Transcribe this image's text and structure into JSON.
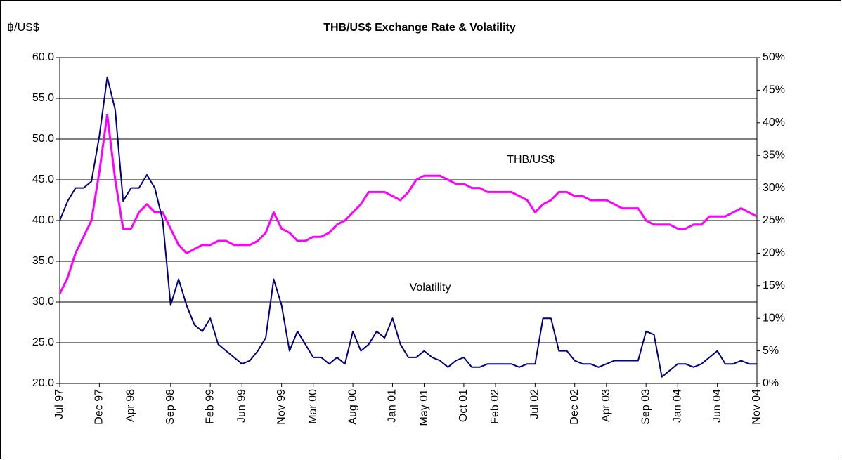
{
  "chart_data": {
    "type": "line",
    "title": "THB/US$ Exchange Rate & Volatility",
    "y_axis_label": "฿/US$",
    "annotations": [
      "THB/US$",
      "Volatility"
    ],
    "categories": [
      "Jul 97",
      null,
      null,
      null,
      null,
      "Dec 97",
      null,
      null,
      null,
      "Apr 98",
      null,
      null,
      null,
      null,
      "Sep 98",
      null,
      null,
      null,
      null,
      "Feb 99",
      null,
      null,
      null,
      "Jun 99",
      null,
      null,
      null,
      null,
      "Nov 99",
      null,
      null,
      null,
      "Mar 00",
      null,
      null,
      null,
      null,
      "Aug 00",
      null,
      null,
      null,
      null,
      "Jan 01",
      null,
      null,
      null,
      "May 01",
      null,
      null,
      null,
      null,
      "Oct 01",
      null,
      null,
      null,
      "Feb 02",
      null,
      null,
      null,
      null,
      "Jul 02",
      null,
      null,
      null,
      null,
      "Dec 02",
      null,
      null,
      null,
      "Apr 03",
      null,
      null,
      null,
      null,
      "Sep 03",
      null,
      null,
      null,
      "Jan 04",
      null,
      null,
      null,
      null,
      "Jun 04",
      null,
      null,
      null,
      null,
      "Nov 04"
    ],
    "series": [
      {
        "name": "THB/US$",
        "color": "#ff00ff",
        "axis": "y",
        "values": [
          31,
          33,
          36,
          38,
          40,
          46,
          53,
          45,
          39,
          39,
          41,
          42,
          41,
          41,
          39,
          37,
          36,
          36.5,
          37,
          37,
          37.5,
          37.5,
          37,
          37,
          37,
          37.5,
          38.5,
          41,
          39,
          38.5,
          37.5,
          37.5,
          38,
          38,
          38.5,
          39.5,
          40,
          41,
          42,
          43.5,
          43.5,
          43.5,
          43,
          42.5,
          43.5,
          45,
          45.5,
          45.5,
          45.5,
          45,
          44.5,
          44.5,
          44,
          44,
          43.5,
          43.5,
          43.5,
          43.5,
          43,
          42.5,
          41,
          42,
          42.5,
          43.5,
          43.5,
          43,
          43,
          42.5,
          42.5,
          42.5,
          42,
          41.5,
          41.5,
          41.5,
          40,
          39.5,
          39.5,
          39.5,
          39,
          39,
          39.5,
          39.5,
          40.5,
          40.5,
          40.5,
          41,
          41.5,
          41,
          40.5
        ]
      },
      {
        "name": "Volatility",
        "color": "#000080",
        "axis": "y2",
        "values": [
          25,
          28,
          30,
          30,
          31,
          38,
          47,
          42,
          28,
          30,
          30,
          32,
          30,
          25,
          12,
          16,
          12,
          9,
          8,
          10,
          6,
          5,
          4,
          3,
          3.5,
          5,
          7,
          16,
          12,
          5,
          8,
          6,
          4,
          4,
          3,
          4,
          3,
          8,
          5,
          6,
          8,
          7,
          10,
          6,
          4,
          4,
          5,
          4,
          3.5,
          2.5,
          3.5,
          4,
          2.5,
          2.5,
          3,
          3,
          3,
          3,
          2.5,
          3,
          3,
          10,
          10,
          5,
          5,
          3.5,
          3,
          3,
          2.5,
          3,
          3.5,
          3.5,
          3.5,
          3.5,
          8,
          7.5,
          1,
          2,
          3,
          3,
          2.5,
          3,
          4,
          5,
          3,
          3,
          3.5,
          3,
          3
        ]
      }
    ],
    "ylim": [
      20,
      60
    ],
    "yticks": [
      {
        "value": 20,
        "label": "20.0"
      },
      {
        "value": 25,
        "label": "25.0"
      },
      {
        "value": 30,
        "label": "30.0"
      },
      {
        "value": 35,
        "label": "35.0"
      },
      {
        "value": 40,
        "label": "40.0"
      },
      {
        "value": 45,
        "label": "45.0"
      },
      {
        "value": 50,
        "label": "50.0"
      },
      {
        "value": 55,
        "label": "55.0"
      },
      {
        "value": 60,
        "label": "60.0"
      }
    ],
    "y2lim": [
      0,
      50
    ],
    "y2ticks": [
      {
        "value": 0,
        "label": "0%"
      },
      {
        "value": 5,
        "label": "5%"
      },
      {
        "value": 10,
        "label": "10%"
      },
      {
        "value": 15,
        "label": "15%"
      },
      {
        "value": 20,
        "label": "20%"
      },
      {
        "value": 25,
        "label": "25%"
      },
      {
        "value": 30,
        "label": "30%"
      },
      {
        "value": 35,
        "label": "35%"
      },
      {
        "value": 40,
        "label": "40%"
      },
      {
        "value": 45,
        "label": "45%"
      },
      {
        "value": 50,
        "label": "50%"
      }
    ],
    "grid": true
  }
}
